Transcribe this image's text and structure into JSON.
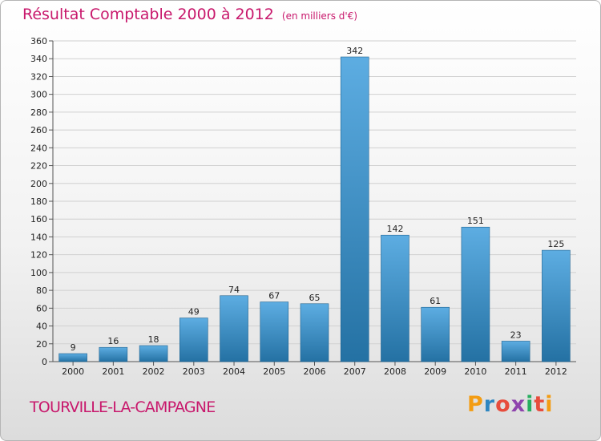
{
  "title": "Résultat Comptable 2000 à 2012",
  "subtitle": "(en milliers d'€)",
  "commune": "TOURVILLE-LA-CAMPAGNE",
  "logo_text": "Proxiti",
  "colors": {
    "title": "#c8186c",
    "bar_light": "#5dade2",
    "bar_dark": "#2471a3",
    "grid": "#d0d0d0"
  },
  "chart_data": {
    "type": "bar",
    "title": "Résultat Comptable 2000 à 2012",
    "xlabel": "",
    "ylabel": "",
    "ylim": [
      0,
      360
    ],
    "yticks": [
      0,
      20,
      40,
      60,
      80,
      100,
      120,
      140,
      160,
      180,
      200,
      220,
      240,
      260,
      280,
      300,
      320,
      340,
      360
    ],
    "grid": true,
    "categories": [
      "2000",
      "2001",
      "2002",
      "2003",
      "2004",
      "2005",
      "2006",
      "2007",
      "2008",
      "2009",
      "2010",
      "2011",
      "2012"
    ],
    "values": [
      9,
      16,
      18,
      49,
      74,
      67,
      65,
      342,
      142,
      61,
      151,
      23,
      125
    ]
  }
}
